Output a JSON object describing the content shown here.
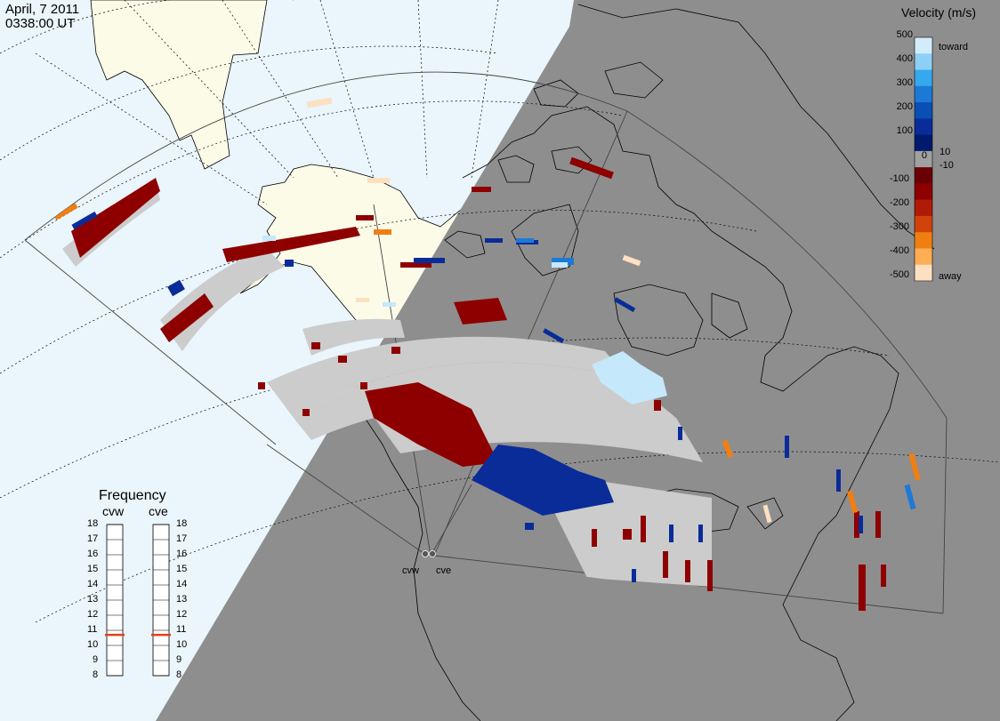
{
  "title": {
    "date": "April, 7 2011",
    "time": "0338:00 UT"
  },
  "colors": {
    "ocean": "#eaf5fc",
    "land_sunlit": "#fcfbe8",
    "night": "#8e8e8e",
    "ground_scatter": "#cccccc",
    "coast": "#000000",
    "grid": "#000000",
    "freq_marker": "#e0401a"
  },
  "sites": [
    {
      "id": "cvw",
      "label": "cvw"
    },
    {
      "id": "cve",
      "label": "cve"
    }
  ],
  "frequency_panel": {
    "title": "Frequency",
    "radars": [
      {
        "label": "cvw",
        "current_mhz": 10.7
      },
      {
        "label": "cve",
        "current_mhz": 10.7
      }
    ],
    "ticks": [
      "18",
      "17",
      "16",
      "15",
      "14",
      "13",
      "12",
      "11",
      "10",
      "9",
      "8"
    ]
  },
  "velocity_scale": {
    "title": "Velocity (m/s)",
    "labels": [
      "500",
      "400",
      "300",
      "200",
      "100",
      "10",
      "0",
      "-10",
      "-100",
      "-200",
      "-300",
      "-400",
      "-500"
    ],
    "toward_label": "toward",
    "away_label": "away",
    "colors_top_to_bottom": [
      "#d3ecfb",
      "#8ecff6",
      "#36a8ee",
      "#1d79d6",
      "#0a4fb5",
      "#0a2c98",
      "#001a6e",
      "#a0a0a0",
      "#6a0005",
      "#8e0000",
      "#b01b07",
      "#d2420b",
      "#f07f12",
      "#ffae55",
      "#fde0c1"
    ]
  }
}
